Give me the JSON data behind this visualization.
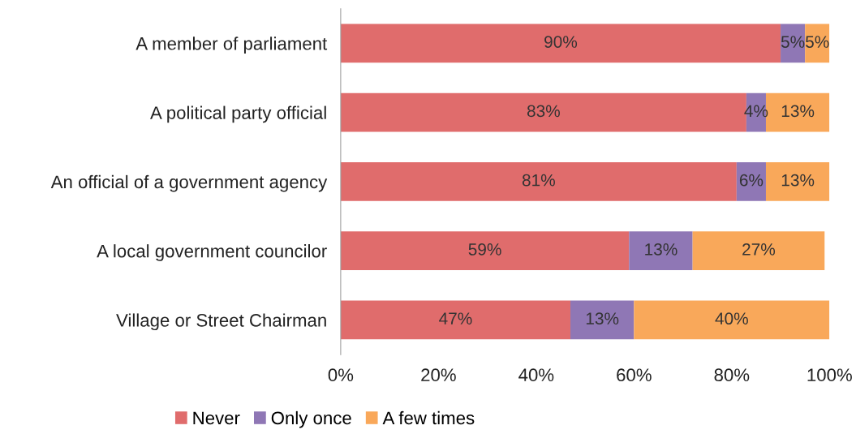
{
  "chart_data": {
    "type": "bar",
    "orientation": "horizontal",
    "stacked": true,
    "categories": [
      "A member of parliament",
      "A political party official",
      "An official of a government agency",
      "A local government councilor",
      "Village or Street Chairman"
    ],
    "series": [
      {
        "name": "Never",
        "color": "#e06c6c",
        "values": [
          90,
          83,
          81,
          59,
          47
        ],
        "value_labels": [
          "90%",
          "83%",
          "81%",
          "59%",
          "47%"
        ]
      },
      {
        "name": "Only once",
        "color": "#8f77b5",
        "values": [
          5,
          4,
          6,
          13,
          13
        ],
        "value_labels": [
          "5%",
          "4%",
          "6%",
          "13%",
          "13%"
        ]
      },
      {
        "name": "A few times",
        "color": "#f9a85a",
        "values": [
          5,
          13,
          13,
          27,
          40
        ],
        "value_labels": [
          "5%",
          "13%",
          "13%",
          "27%",
          "40%"
        ]
      }
    ],
    "xlim": [
      0,
      100
    ],
    "xticks": [
      {
        "value": 0,
        "label": "0%"
      },
      {
        "value": 20,
        "label": "20%"
      },
      {
        "value": 40,
        "label": "40%"
      },
      {
        "value": 60,
        "label": "60%"
      },
      {
        "value": 80,
        "label": "80%"
      },
      {
        "value": 100,
        "label": "100%"
      }
    ],
    "grid": false,
    "legend": "bottom"
  }
}
